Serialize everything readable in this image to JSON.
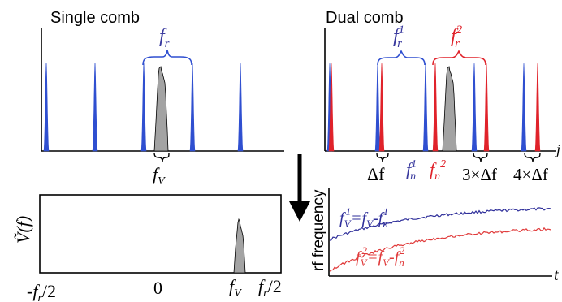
{
  "colors": {
    "blue": "#2f4fd0",
    "blue_text": "#3a3a9e",
    "red": "#e0222a",
    "gray_fill": "#a3a3a3",
    "trace_blue": "#2e2e9a",
    "trace_red": "#e03a3a",
    "axis": "#000000"
  },
  "single_comb": {
    "title": "Single comb",
    "spacing_label": "f",
    "spacing_sub": "r",
    "signal_label": "f",
    "signal_sub": "V"
  },
  "dual_comb": {
    "title": "Dual comb",
    "comb1_label": "f",
    "comb1_sub": "r",
    "comb1_sup": "1",
    "comb2_label": "f",
    "comb2_sub": "r",
    "comb2_sup": "2",
    "delta_f": "Δf",
    "fn1_label": "f",
    "fn1_sub": "n",
    "fn1_sup": "1",
    "fn2_label": "f",
    "fn2_sub": "n",
    "fn2_sup": "2",
    "three_delta": "3×Δf",
    "four_delta": "4×Δf",
    "axis_tail": "j"
  },
  "spectrum_panel": {
    "ylabel": "Ṽ(f)",
    "ticks": [
      "-f",
      "0",
      "f",
      "f"
    ],
    "tick_subs": [
      "r",
      "",
      "V",
      "r"
    ],
    "tick_suffix": "/2"
  },
  "rf_panel": {
    "ylabel": "rf frequency",
    "xlabel": "t",
    "trace1_lhs": "f",
    "trace1_lhs_sub": "V",
    "trace1_lhs_sup": "1",
    "trace1_rhs": "=f",
    "trace1_rhs_sub": "V",
    "trace1_minus": "-f",
    "trace1_minus_sub": "n",
    "trace1_minus_sup": "1",
    "trace2_lhs": "f",
    "trace2_lhs_sub": "V",
    "trace2_lhs_sup": "2",
    "trace2_rhs": "=f",
    "trace2_rhs_sub": "V",
    "trace2_minus": "-f",
    "trace2_minus_sub": "n",
    "trace2_minus_sup": "2"
  }
}
